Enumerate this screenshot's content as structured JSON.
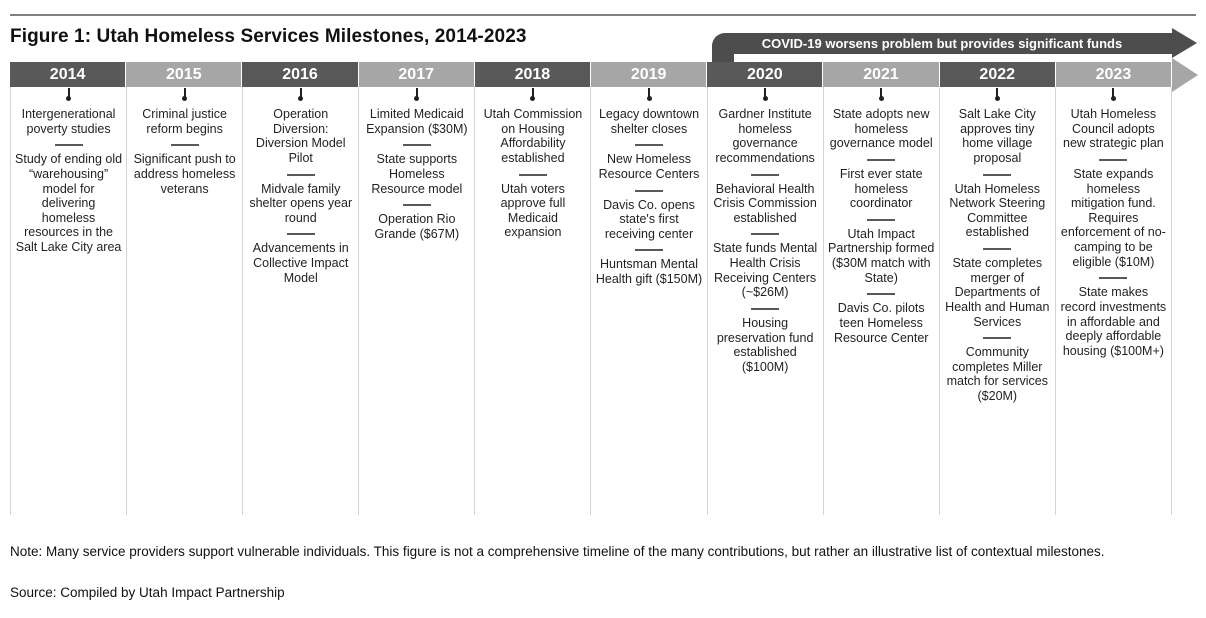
{
  "figure": {
    "title": "Figure 1: Utah Homeless Services Milestones, 2014-2023",
    "covid_banner": "COVID-19 worsens problem but provides significant funds",
    "note": "Note: Many service providers support vulnerable individuals. This figure is not a comprehensive timeline of the many contributions, but rather an illustrative list of contextual milestones.",
    "source": "Source: Compiled by Utah Impact Partnership"
  },
  "colors": {
    "year_block_dark": "#595959",
    "year_block_light": "#a6a6a6",
    "covid_banner": "#4d4d4d",
    "text": "#231f20",
    "column_line": "#d4d4d4",
    "top_rule": "#7f7f7f"
  },
  "chart_data": {
    "type": "table",
    "title": "Figure 1: Utah Homeless Services Milestones, 2014-2023",
    "annotation": "COVID-19 worsens problem but provides significant funds (spans 2020-2023)",
    "categories": [
      "2014",
      "2015",
      "2016",
      "2017",
      "2018",
      "2019",
      "2020",
      "2021",
      "2022",
      "2023"
    ]
  },
  "timeline": {
    "years": [
      {
        "label": "2014",
        "shade": "dark",
        "milestones": [
          "Intergenerational poverty studies",
          "Study of ending old “warehousing” model for delivering homeless resources in the Salt Lake City area"
        ]
      },
      {
        "label": "2015",
        "shade": "light",
        "milestones": [
          "Criminal justice reform begins",
          "Significant push to address homeless veterans"
        ]
      },
      {
        "label": "2016",
        "shade": "dark",
        "milestones": [
          "Operation Diversion: Diversion Model Pilot",
          "Midvale family shelter opens year round",
          "Advancements in Collective Impact Model"
        ]
      },
      {
        "label": "2017",
        "shade": "light",
        "milestones": [
          "Limited Medicaid Expansion ($30M)",
          "State supports Homeless Resource model",
          "Operation Rio Grande ($67M)"
        ]
      },
      {
        "label": "2018",
        "shade": "dark",
        "milestones": [
          "Utah Commission on Housing Affordability established",
          "Utah voters approve full Medicaid expansion"
        ]
      },
      {
        "label": "2019",
        "shade": "light",
        "milestones": [
          "Legacy downtown shelter closes",
          "New Homeless Resource Centers",
          "Davis Co. opens state's first receiving center",
          "Huntsman Mental Health gift ($150M)"
        ]
      },
      {
        "label": "2020",
        "shade": "dark",
        "milestones": [
          "Gardner Institute homeless governance recommendations",
          "Behavioral Health Crisis Commission established",
          "State funds Mental Health Crisis Receiving Centers (~$26M)",
          "Housing preservation fund established ($100M)"
        ]
      },
      {
        "label": "2021",
        "shade": "light",
        "milestones": [
          "State adopts new homeless governance model",
          "First ever state homeless coordinator",
          "Utah Impact Partnership formed ($30M match with State)",
          "Davis Co. pilots teen Homeless Resource Center"
        ]
      },
      {
        "label": "2022",
        "shade": "dark",
        "milestones": [
          "Salt Lake City approves tiny home village proposal",
          "Utah Homeless Network Steering Committee established",
          "State completes merger of Departments of Health and Human Services",
          "Community completes Miller match for services ($20M)"
        ]
      },
      {
        "label": "2023",
        "shade": "light",
        "milestones": [
          "Utah Homeless Council adopts new strategic plan",
          "State expands homeless mitigation fund. Requires enforcement of no-camping to be eligible ($10M)",
          "State makes record investments in affordable and deeply affordable housing ($100M+)"
        ]
      }
    ]
  }
}
